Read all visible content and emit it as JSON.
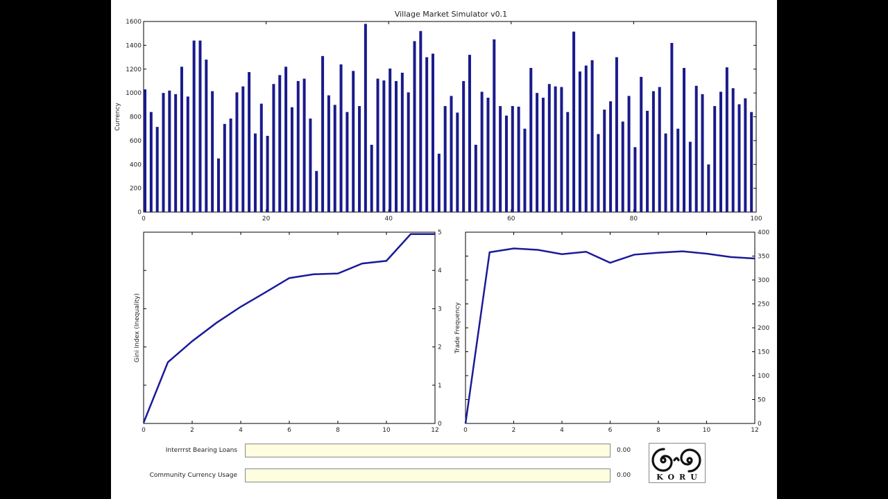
{
  "window": {
    "title": "Village Market Simulator v0.1"
  },
  "colors": {
    "bar": "#1a1a8c",
    "line": "#1a1a9a",
    "axis": "#000000",
    "slider_bg": "#fffde0"
  },
  "chart_data": [
    {
      "type": "bar",
      "title": "Village Market Simulator v0.1",
      "xlabel": "",
      "ylabel": "Currency",
      "xlim": [
        0,
        100
      ],
      "ylim": [
        0,
        1600
      ],
      "xticks": [
        0,
        20,
        40,
        60,
        80,
        100
      ],
      "yticks": [
        0,
        200,
        400,
        600,
        800,
        1000,
        1200,
        1400,
        1600
      ],
      "values": [
        1030,
        840,
        715,
        1000,
        1020,
        990,
        1220,
        970,
        1440,
        1440,
        1280,
        1015,
        450,
        740,
        785,
        1005,
        1055,
        1175,
        660,
        910,
        640,
        1075,
        1150,
        1220,
        880,
        1100,
        1120,
        785,
        345,
        1310,
        980,
        900,
        1240,
        840,
        1185,
        890,
        1580,
        565,
        1120,
        1105,
        1205,
        1100,
        1170,
        1005,
        1435,
        1520,
        1300,
        1330,
        490,
        890,
        975,
        835,
        1100,
        1320,
        565,
        1010,
        960,
        1450,
        890,
        810,
        890,
        885,
        700,
        1210,
        1000,
        960,
        1075,
        1055,
        1050,
        840,
        1515,
        1180,
        1230,
        1275,
        655,
        860,
        930,
        1300,
        760,
        975,
        545,
        1135,
        850,
        1015,
        1050,
        660,
        1420,
        700,
        1210,
        590,
        1060,
        990,
        400,
        890,
        1010,
        1215,
        1040,
        905,
        955,
        840
      ]
    },
    {
      "type": "line",
      "xlabel": "",
      "ylabel": "Gini Index (Inequality)",
      "xlim": [
        0,
        12
      ],
      "ylim": [
        0,
        5
      ],
      "xticks": [
        0,
        2,
        4,
        6,
        8,
        10,
        12
      ],
      "yticks": [
        0,
        1,
        2,
        3,
        4,
        5
      ],
      "x": [
        0,
        1,
        2,
        3,
        4,
        5,
        6,
        7,
        8,
        9,
        10,
        11,
        12
      ],
      "y": [
        0.02,
        1.6,
        2.15,
        2.63,
        3.05,
        3.42,
        3.8,
        3.9,
        3.92,
        4.18,
        4.25,
        4.95,
        4.95
      ]
    },
    {
      "type": "line",
      "xlabel": "",
      "ylabel": "Trade Frequency",
      "xlim": [
        0,
        12
      ],
      "ylim": [
        0,
        400
      ],
      "xticks": [
        0,
        2,
        4,
        6,
        8,
        10,
        12
      ],
      "yticks": [
        0,
        50,
        100,
        150,
        200,
        250,
        300,
        350,
        400
      ],
      "x": [
        0,
        1,
        2,
        3,
        4,
        5,
        6,
        7,
        8,
        9,
        10,
        11,
        12
      ],
      "y": [
        0,
        358,
        366,
        363,
        354,
        359,
        336,
        353,
        357,
        360,
        355,
        348,
        345
      ]
    }
  ],
  "controls": {
    "interest_loans": {
      "label": "Interrrst Bearing Loans",
      "value": 0.0,
      "display": "0.00"
    },
    "community_currency": {
      "label": "Community Currency Usage",
      "value": 0.0,
      "display": "0.00"
    }
  },
  "logo": {
    "text": "KORU",
    "icon": "koru-spiral-icon"
  }
}
